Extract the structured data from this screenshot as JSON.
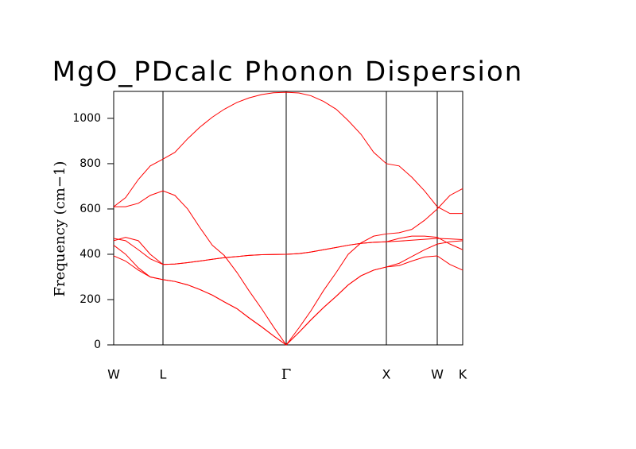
{
  "chart_data": {
    "type": "line",
    "title": "MgO_PDcalc Phonon Dispersion",
    "y_label": "Frequency (cm−1)",
    "x": [
      0,
      15,
      31,
      46,
      62,
      77,
      93,
      108,
      124,
      139,
      155,
      170,
      186,
      201,
      217,
      233,
      248,
      264,
      280,
      295,
      311,
      327,
      343,
      359,
      375,
      391,
      407,
      423,
      439
    ],
    "xlim": [
      0,
      439
    ],
    "xticks": [
      {
        "value": 0,
        "label": "W"
      },
      {
        "value": 62,
        "label": "L"
      },
      {
        "value": 217,
        "label": "Γ"
      },
      {
        "value": 343,
        "label": "X"
      },
      {
        "value": 407,
        "label": "W"
      },
      {
        "value": 439,
        "label": "K"
      }
    ],
    "ylim": [
      0,
      1119
    ],
    "yticks": [
      0,
      200,
      400,
      600,
      800,
      1000
    ],
    "series": [
      {
        "color": "#ff0000",
        "values": [
          393,
          370,
          330,
          300,
          288,
          280,
          265,
          245,
          220,
          190,
          160,
          120,
          80,
          40,
          0,
          55,
          110,
          165,
          215,
          265,
          305,
          330,
          344,
          350,
          370,
          388,
          393,
          355,
          330
        ]
      },
      {
        "color": "#ff0000",
        "values": [
          440,
          400,
          340,
          300,
          288,
          280,
          265,
          245,
          220,
          190,
          160,
          120,
          80,
          40,
          0,
          55,
          110,
          165,
          215,
          265,
          305,
          330,
          344,
          360,
          390,
          420,
          445,
          455,
          460
        ]
      },
      {
        "color": "#ff0000",
        "values": [
          470,
          460,
          420,
          380,
          355,
          357,
          363,
          370,
          378,
          385,
          390,
          395,
          398,
          399,
          400,
          403,
          410,
          420,
          430,
          440,
          448,
          453,
          455,
          458,
          462,
          466,
          470,
          468,
          465
        ]
      },
      {
        "color": "#ff0000",
        "values": [
          460,
          475,
          460,
          400,
          355,
          357,
          363,
          370,
          378,
          385,
          390,
          395,
          398,
          399,
          400,
          403,
          410,
          420,
          430,
          440,
          448,
          453,
          455,
          470,
          480,
          480,
          475,
          445,
          420
        ]
      },
      {
        "color": "#ff0000",
        "values": [
          610,
          610,
          625,
          660,
          680,
          660,
          600,
          520,
          440,
          395,
          320,
          240,
          160,
          80,
          0,
          75,
          150,
          240,
          320,
          400,
          450,
          480,
          490,
          495,
          510,
          550,
          600,
          660,
          690
        ]
      },
      {
        "color": "#ff0000",
        "values": [
          610,
          650,
          730,
          790,
          820,
          850,
          910,
          960,
          1005,
          1040,
          1070,
          1090,
          1105,
          1113,
          1115,
          1112,
          1100,
          1075,
          1040,
          990,
          930,
          850,
          800,
          790,
          740,
          680,
          610,
          580,
          580
        ]
      }
    ]
  }
}
